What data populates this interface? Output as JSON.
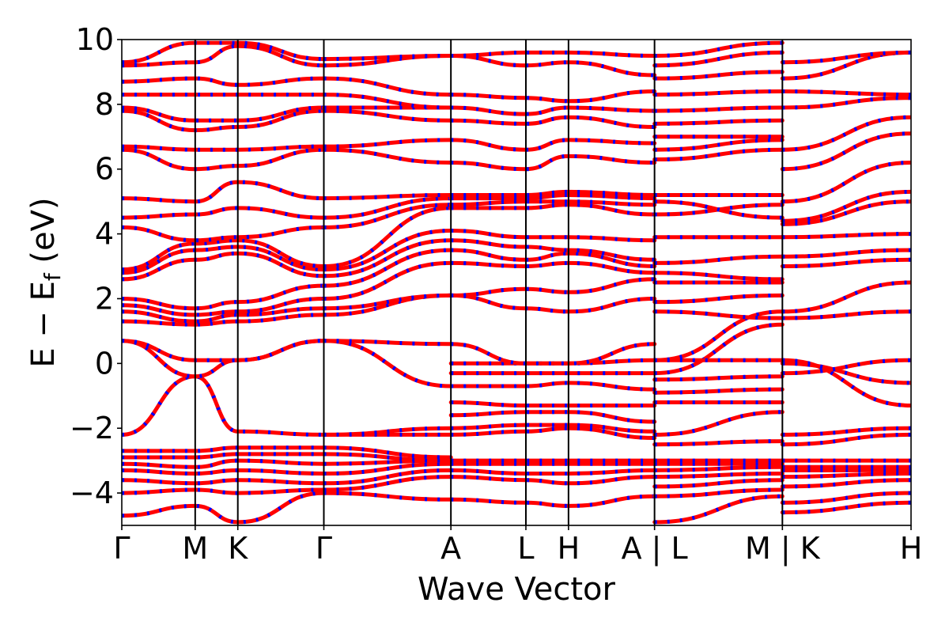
{
  "chart_data": {
    "type": "line",
    "title": "",
    "xlabel": "Wave Vector",
    "ylabel_main": "E − E",
    "ylabel_sub": "f",
    "ylabel_unit": " (eV)",
    "ylim": [
      -5,
      10
    ],
    "yticks": [
      {
        "value": -4,
        "label": "−4"
      },
      {
        "value": -2,
        "label": "−2"
      },
      {
        "value": 0,
        "label": "0"
      },
      {
        "value": 2,
        "label": "2"
      },
      {
        "value": 4,
        "label": "4"
      },
      {
        "value": 6,
        "label": "6"
      },
      {
        "value": 8,
        "label": "8"
      },
      {
        "value": 10,
        "label": "10"
      }
    ],
    "xlim": [
      0,
      1
    ],
    "kpoints": [
      {
        "x": 0.0,
        "label": "Γ"
      },
      {
        "x": 0.093,
        "label": "M"
      },
      {
        "x": 0.147,
        "label": "K"
      },
      {
        "x": 0.256,
        "label": "Γ"
      },
      {
        "x": 0.417,
        "label": "A"
      },
      {
        "x": 0.512,
        "label": "L"
      },
      {
        "x": 0.566,
        "label": "H"
      },
      {
        "x": 0.675,
        "label": "A | L"
      },
      {
        "x": 0.837,
        "label": "M | K"
      },
      {
        "x": 1.0,
        "label": "H"
      }
    ],
    "grid": false,
    "series_colors": {
      "spin_up": "#0000ff",
      "spin_down": "#ff0000"
    },
    "segments": [
      {
        "x": [
          0.0,
          0.093,
          0.147,
          0.256
        ],
        "bands": [
          [
            -4.7,
            -4.4,
            -4.9,
            -4.0
          ],
          [
            -4.0,
            -3.9,
            -4.0,
            -3.9
          ],
          [
            -3.6,
            -3.7,
            -3.6,
            -3.7
          ],
          [
            -3.3,
            -3.4,
            -3.3,
            -3.4
          ],
          [
            -3.1,
            -3.2,
            -3.0,
            -3.1
          ],
          [
            -2.9,
            -2.9,
            -2.8,
            -2.8
          ],
          [
            -2.7,
            -2.7,
            -2.6,
            -2.6
          ],
          [
            -2.2,
            -0.4,
            -2.1,
            -2.2
          ],
          [
            0.7,
            -0.4,
            0.1,
            0.7
          ],
          [
            0.7,
            0.1,
            0.1,
            0.7
          ],
          [
            1.3,
            1.2,
            1.3,
            1.5
          ],
          [
            1.6,
            1.3,
            1.5,
            1.7
          ],
          [
            1.8,
            1.5,
            1.6,
            2.0
          ],
          [
            2.0,
            1.7,
            1.9,
            2.4
          ],
          [
            2.6,
            3.2,
            3.4,
            2.7
          ],
          [
            2.8,
            3.5,
            3.6,
            2.9
          ],
          [
            2.9,
            3.7,
            3.8,
            3.0
          ],
          [
            4.2,
            3.8,
            3.9,
            4.2
          ],
          [
            4.5,
            4.6,
            4.8,
            4.5
          ],
          [
            5.1,
            5.0,
            5.6,
            5.1
          ],
          [
            6.6,
            6.0,
            6.1,
            6.6
          ],
          [
            6.7,
            6.6,
            6.6,
            6.7
          ],
          [
            7.8,
            7.2,
            7.3,
            7.8
          ],
          [
            7.9,
            7.5,
            7.5,
            7.9
          ],
          [
            8.3,
            8.3,
            8.3,
            8.3
          ],
          [
            8.7,
            8.8,
            8.6,
            8.8
          ],
          [
            9.2,
            9.3,
            9.8,
            9.2
          ],
          [
            9.3,
            9.9,
            9.9,
            9.4
          ]
        ]
      },
      {
        "x": [
          0.256,
          0.417
        ],
        "bands": [
          [
            -4.0,
            -4.2
          ],
          [
            -3.9,
            -3.5
          ],
          [
            -3.7,
            -3.3
          ],
          [
            -3.4,
            -3.1
          ],
          [
            -3.1,
            -3.0
          ],
          [
            -2.8,
            -3.0
          ],
          [
            -2.6,
            -2.9
          ],
          [
            -2.2,
            -2.2
          ],
          [
            -2.2,
            -2.0
          ],
          [
            0.7,
            -0.7
          ],
          [
            0.7,
            0.6
          ],
          [
            1.5,
            2.1
          ],
          [
            1.7,
            2.1
          ],
          [
            2.0,
            3.1
          ],
          [
            2.4,
            3.5
          ],
          [
            2.7,
            3.8
          ],
          [
            2.9,
            4.1
          ],
          [
            3.0,
            4.8
          ],
          [
            4.2,
            4.9
          ],
          [
            4.5,
            5.1
          ],
          [
            5.1,
            5.2
          ],
          [
            6.6,
            6.2
          ],
          [
            6.7,
            6.9
          ],
          [
            7.8,
            7.5
          ],
          [
            7.9,
            7.9
          ],
          [
            8.3,
            7.9
          ],
          [
            8.8,
            8.3
          ],
          [
            9.2,
            9.5
          ],
          [
            9.4,
            9.5
          ]
        ]
      },
      {
        "x": [
          0.417,
          0.512,
          0.566,
          0.675
        ],
        "bands": [
          [
            -4.2,
            -4.3,
            -4.4,
            -4.1
          ],
          [
            -3.5,
            -3.6,
            -3.7,
            -3.5
          ],
          [
            -3.3,
            -3.4,
            -3.4,
            -3.3
          ],
          [
            -3.1,
            -3.1,
            -3.1,
            -3.1
          ],
          [
            -3.0,
            -3.0,
            -3.0,
            -3.0
          ],
          [
            -2.2,
            -2.1,
            -2.0,
            -2.3
          ],
          [
            -2.0,
            -1.9,
            -1.9,
            -2.1
          ],
          [
            -1.6,
            -1.5,
            -1.5,
            -1.8
          ],
          [
            -1.2,
            -1.3,
            -1.3,
            -1.3
          ],
          [
            -0.7,
            -0.7,
            -0.6,
            -0.8
          ],
          [
            -0.3,
            -0.3,
            -0.3,
            -0.3
          ],
          [
            0.0,
            0.0,
            0.0,
            0.1
          ],
          [
            0.6,
            0.0,
            0.0,
            0.6
          ],
          [
            2.1,
            1.7,
            1.6,
            2.0
          ],
          [
            2.1,
            2.3,
            2.2,
            2.6
          ],
          [
            3.1,
            3.0,
            3.1,
            2.8
          ],
          [
            3.5,
            3.2,
            3.4,
            3.0
          ],
          [
            3.8,
            3.6,
            3.5,
            3.2
          ],
          [
            4.1,
            3.9,
            3.9,
            3.8
          ],
          [
            4.8,
            4.8,
            4.9,
            4.6
          ],
          [
            4.9,
            5.0,
            5.0,
            4.9
          ],
          [
            5.1,
            5.1,
            5.2,
            5.1
          ],
          [
            5.2,
            5.2,
            5.3,
            5.2
          ],
          [
            6.2,
            6.0,
            6.4,
            6.2
          ],
          [
            6.9,
            6.6,
            6.9,
            6.8
          ],
          [
            7.5,
            7.4,
            7.6,
            7.3
          ],
          [
            7.9,
            7.7,
            7.9,
            7.8
          ],
          [
            8.3,
            8.2,
            8.1,
            8.4
          ],
          [
            9.5,
            9.2,
            9.3,
            8.9
          ],
          [
            9.5,
            9.6,
            9.6,
            9.5
          ]
        ]
      },
      {
        "x": [
          0.675,
          0.837
        ],
        "bands": [
          [
            -4.9,
            -4.1
          ],
          [
            -4.1,
            -3.9
          ],
          [
            -3.8,
            -3.6
          ],
          [
            -3.5,
            -3.4
          ],
          [
            -3.3,
            -3.2
          ],
          [
            -3.1,
            -3.1
          ],
          [
            -3.0,
            -3.0
          ],
          [
            -2.5,
            -2.4
          ],
          [
            -2.2,
            -1.5
          ],
          [
            -1.2,
            -1.2
          ],
          [
            -0.9,
            -0.8
          ],
          [
            -0.5,
            -0.4
          ],
          [
            -0.3,
            1.2
          ],
          [
            0.1,
            1.6
          ],
          [
            0.1,
            0.1
          ],
          [
            1.6,
            1.4
          ],
          [
            1.9,
            2.1
          ],
          [
            2.5,
            2.5
          ],
          [
            2.8,
            2.6
          ],
          [
            3.1,
            3.3
          ],
          [
            3.9,
            3.9
          ],
          [
            4.6,
            4.9
          ],
          [
            5.0,
            4.5
          ],
          [
            5.2,
            5.2
          ],
          [
            6.3,
            6.6
          ],
          [
            6.6,
            6.9
          ],
          [
            7.0,
            7.0
          ],
          [
            7.4,
            7.5
          ],
          [
            7.8,
            7.9
          ],
          [
            8.3,
            8.4
          ],
          [
            8.8,
            9.0
          ],
          [
            9.2,
            9.6
          ],
          [
            9.5,
            9.9
          ]
        ]
      },
      {
        "x": [
          0.837,
          1.0
        ],
        "bands": [
          [
            -4.6,
            -4.3
          ],
          [
            -4.3,
            -4.0
          ],
          [
            -3.8,
            -3.6
          ],
          [
            -3.5,
            -3.4
          ],
          [
            -3.3,
            -3.3
          ],
          [
            -3.2,
            -3.2
          ],
          [
            -3.0,
            -3.0
          ],
          [
            -2.5,
            -2.2
          ],
          [
            -2.2,
            -2.0
          ],
          [
            0.1,
            -1.3
          ],
          [
            0.0,
            -0.6
          ],
          [
            -0.3,
            0.1
          ],
          [
            1.4,
            1.6
          ],
          [
            1.6,
            2.5
          ],
          [
            3.0,
            3.2
          ],
          [
            3.3,
            3.5
          ],
          [
            3.9,
            4.0
          ],
          [
            4.3,
            5.0
          ],
          [
            4.4,
            5.3
          ],
          [
            5.0,
            6.2
          ],
          [
            6.0,
            7.1
          ],
          [
            6.6,
            7.6
          ],
          [
            7.9,
            8.2
          ],
          [
            8.4,
            8.3
          ],
          [
            8.8,
            9.6
          ],
          [
            9.3,
            9.6
          ]
        ]
      }
    ]
  }
}
